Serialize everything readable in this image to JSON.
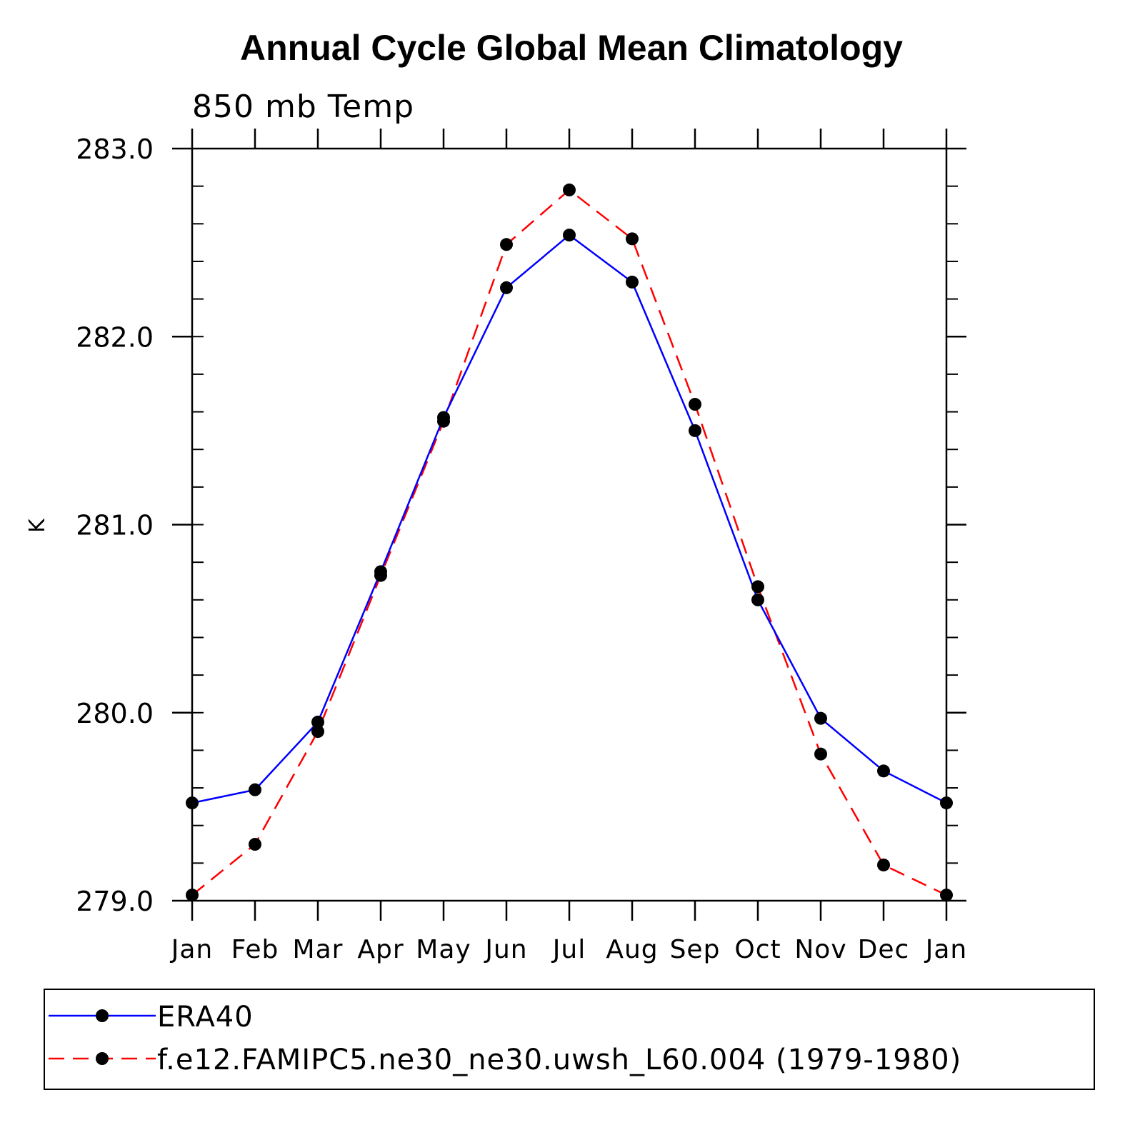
{
  "chart_data": {
    "type": "line",
    "title": "Annual Cycle Global Mean Climatology",
    "subtitle": "850 mb Temp",
    "ylabel": "K",
    "xlabel": "",
    "categories": [
      "Jan",
      "Feb",
      "Mar",
      "Apr",
      "May",
      "Jun",
      "Jul",
      "Aug",
      "Sep",
      "Oct",
      "Nov",
      "Dec",
      "Jan"
    ],
    "ylim": [
      279.0,
      283.0
    ],
    "y_major_ticks": [
      279.0,
      280.0,
      281.0,
      282.0,
      283.0
    ],
    "y_tick_labels": [
      "279.0",
      "280.0",
      "281.0",
      "282.0",
      "283.0"
    ],
    "y_minor_step": 0.2,
    "grid": false,
    "legend_position": "bottom",
    "series": [
      {
        "name": "ERA40",
        "color": "#0000ff",
        "line_style": "solid",
        "marker": "filled-circle",
        "values": [
          279.52,
          279.59,
          279.95,
          280.75,
          281.57,
          282.26,
          282.54,
          282.29,
          281.5,
          280.6,
          279.97,
          279.69,
          279.52
        ]
      },
      {
        "name": "f.e12.FAMIPC5.ne30_ne30.uwsh_L60.004 (1979-1980)",
        "color": "#ff0000",
        "line_style": "dashed",
        "marker": "filled-circle",
        "values": [
          279.03,
          279.3,
          279.9,
          280.73,
          281.55,
          282.49,
          282.78,
          282.52,
          281.64,
          280.67,
          279.78,
          279.19,
          279.03
        ]
      }
    ]
  }
}
